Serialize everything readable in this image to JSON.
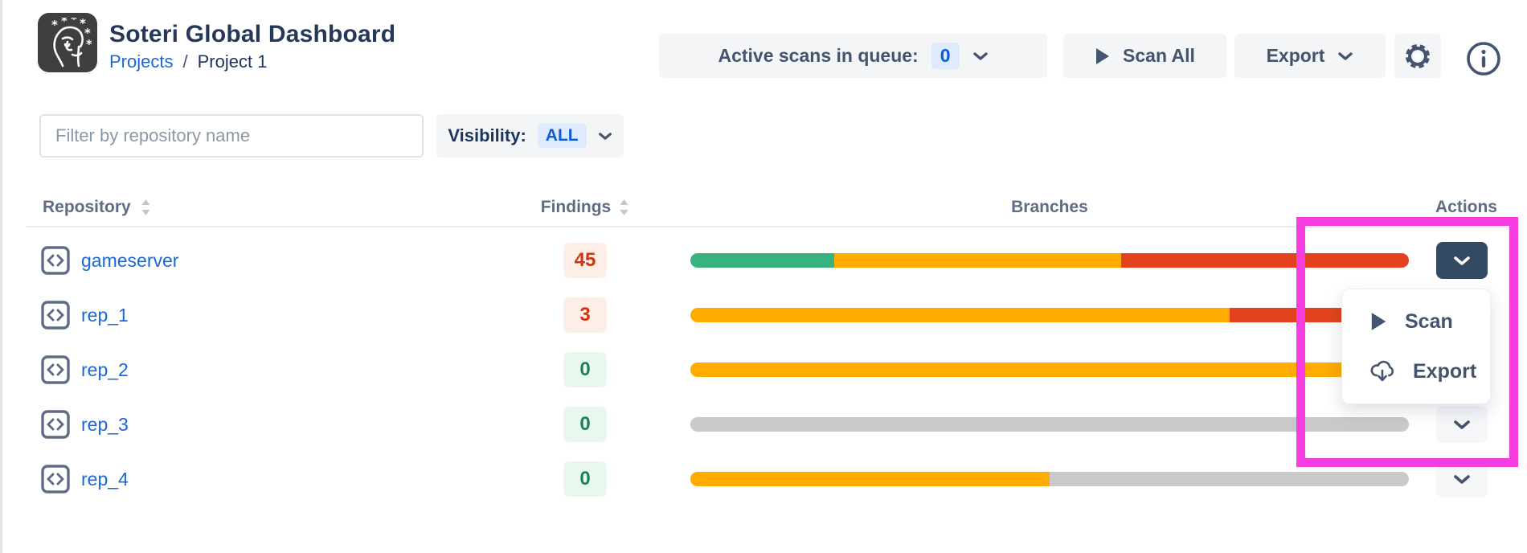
{
  "header": {
    "title": "Soteri Global Dashboard",
    "breadcrumb": {
      "link": "Projects",
      "separator": "/",
      "current": "Project 1"
    },
    "active_scans_label": "Active scans in queue:",
    "active_scans_count": "0",
    "scan_all_label": "Scan All",
    "export_label": "Export"
  },
  "toolbar": {
    "filter_placeholder": "Filter by repository name",
    "visibility_label": "Visibility:",
    "visibility_value": "ALL"
  },
  "table": {
    "columns": [
      "Repository",
      "Findings",
      "Branches",
      "Actions"
    ],
    "rows": [
      {
        "name": "gameserver",
        "findings": "45",
        "level": "danger",
        "segments": [
          {
            "color": "#36B37E",
            "pct": 20
          },
          {
            "color": "#FFAB00",
            "pct": 40
          },
          {
            "color": "#E2431E",
            "pct": 40
          }
        ],
        "action": "open"
      },
      {
        "name": "rep_1",
        "findings": "3",
        "level": "danger",
        "segments": [
          {
            "color": "#FFAB00",
            "pct": 75
          },
          {
            "color": "#E2431E",
            "pct": 25
          }
        ],
        "action": "default"
      },
      {
        "name": "rep_2",
        "findings": "0",
        "level": "success",
        "segments": [
          {
            "color": "#FFAB00",
            "pct": 100
          }
        ],
        "action": "default"
      },
      {
        "name": "rep_3",
        "findings": "0",
        "level": "success",
        "segments": [
          {
            "color": "#C9C9C9",
            "pct": 100
          }
        ],
        "action": "default"
      },
      {
        "name": "rep_4",
        "findings": "0",
        "level": "success",
        "segments": [
          {
            "color": "#FFAB00",
            "pct": 50
          },
          {
            "color": "#C9C9C9",
            "pct": 50
          }
        ],
        "action": "default"
      }
    ]
  },
  "action_menu": {
    "items": [
      {
        "label": "Scan",
        "icon": "play-icon"
      },
      {
        "label": "Export",
        "icon": "cloud-download-icon"
      }
    ]
  },
  "annotation": {
    "color": "#F63DE1"
  },
  "colors": {
    "link_blue": "#1868DB",
    "badge_blue_bg": "#DEEBFF",
    "badge_blue_text": "#0B5CD7",
    "bar_green": "#36B37E",
    "bar_amber": "#FFAB00",
    "bar_red": "#E2431E",
    "bar_gray": "#C9C9C9",
    "findings_danger": "#CF3411",
    "findings_success": "#1E7F53",
    "action_open_bg": "#334A63",
    "annotation_magenta": "#F63DE1"
  }
}
